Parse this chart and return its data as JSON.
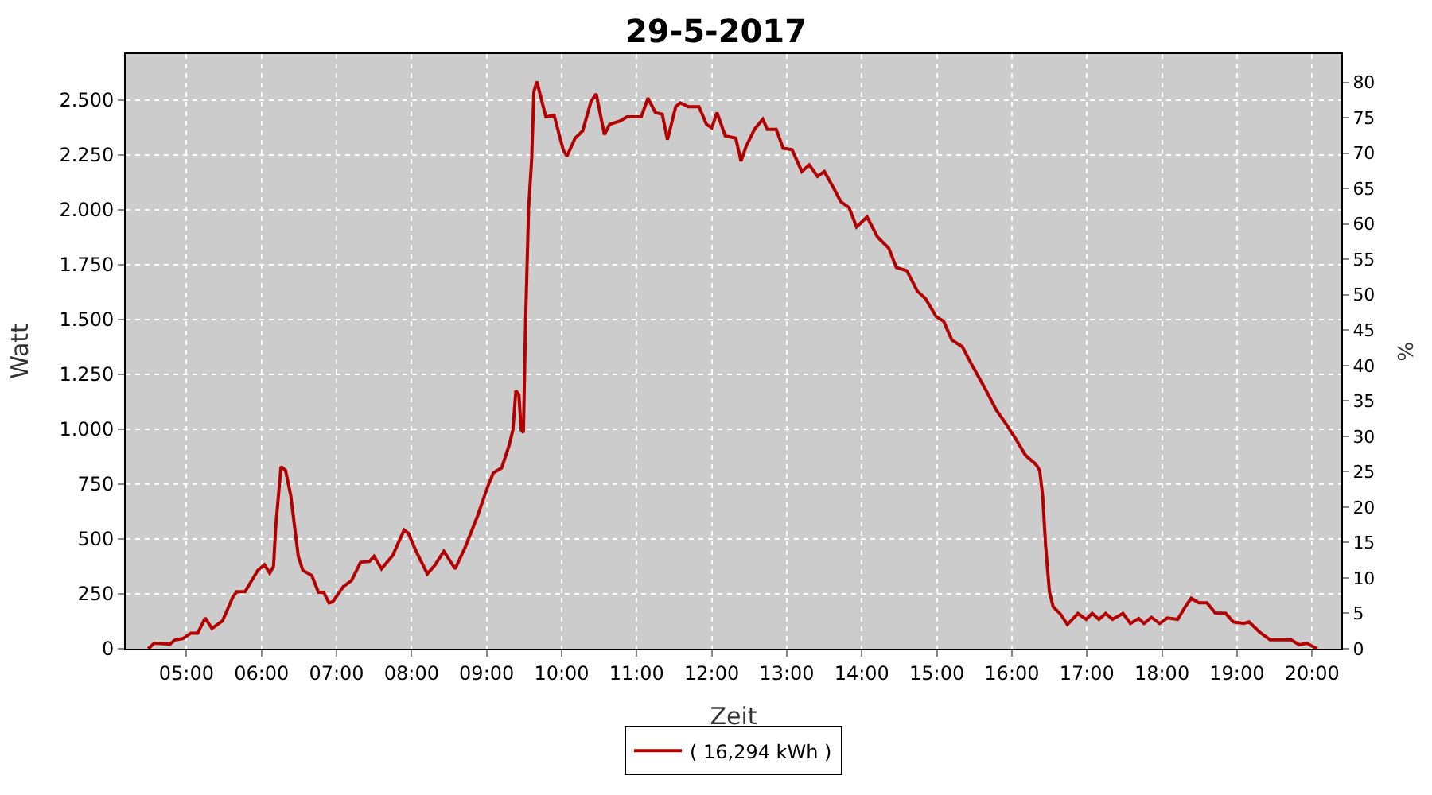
{
  "chart_data": {
    "type": "line",
    "title": "29-5-2017",
    "xlabel": "Zeit",
    "ylabel": "Watt",
    "y2label": "%",
    "x": [
      4.49,
      4.57,
      4.78,
      4.85,
      4.95,
      5.06,
      5.15,
      5.25,
      5.34,
      5.48,
      5.62,
      5.67,
      5.78,
      5.95,
      6.04,
      6.11,
      6.16,
      6.19,
      6.26,
      6.32,
      6.39,
      6.49,
      6.55,
      6.67,
      6.76,
      6.83,
      6.9,
      6.95,
      7.09,
      7.2,
      7.32,
      7.44,
      7.5,
      7.6,
      7.75,
      7.9,
      7.96,
      8.06,
      8.21,
      8.31,
      8.43,
      8.58,
      8.72,
      8.88,
      9.02,
      9.09,
      9.2,
      9.3,
      9.35,
      9.39,
      9.43,
      9.46,
      9.49,
      9.52,
      9.56,
      9.6,
      9.63,
      9.67,
      9.72,
      9.79,
      9.9,
      10.02,
      10.07,
      10.18,
      10.28,
      10.39,
      10.46,
      10.57,
      10.64,
      10.78,
      10.87,
      11.06,
      11.15,
      11.25,
      11.34,
      11.41,
      11.52,
      11.58,
      11.69,
      11.83,
      11.93,
      12.0,
      12.07,
      12.18,
      12.32,
      12.39,
      12.46,
      12.57,
      12.68,
      12.74,
      12.86,
      12.95,
      13.07,
      13.2,
      13.3,
      13.41,
      13.5,
      13.62,
      13.72,
      13.83,
      13.93,
      14.07,
      14.21,
      14.36,
      14.46,
      14.6,
      14.74,
      14.85,
      14.99,
      15.09,
      15.2,
      15.34,
      15.48,
      15.65,
      15.79,
      15.93,
      16.06,
      16.18,
      16.32,
      16.37,
      16.41,
      16.45,
      16.5,
      16.55,
      16.65,
      16.74,
      16.88,
      16.99,
      17.07,
      17.16,
      17.25,
      17.34,
      17.48,
      17.58,
      17.69,
      17.76,
      17.86,
      17.97,
      18.07,
      18.21,
      18.31,
      18.39,
      18.49,
      18.6,
      18.71,
      18.85,
      18.95,
      19.09,
      19.16,
      19.3,
      19.44,
      19.72,
      19.83,
      19.93,
      20.0,
      20.07
    ],
    "series": [
      {
        "name": "( 16,294 kWh )",
        "color": "#b30000",
        "values": [
          0,
          25,
          21,
          41,
          46,
          71,
          71,
          140,
          92,
          127,
          237,
          260,
          260,
          357,
          382,
          345,
          375,
          559,
          829,
          813,
          697,
          421,
          357,
          334,
          256,
          256,
          209,
          214,
          283,
          311,
          394,
          398,
          421,
          364,
          426,
          541,
          525,
          444,
          341,
          380,
          444,
          364,
          467,
          606,
          744,
          801,
          824,
          927,
          997,
          1176,
          1158,
          997,
          985,
          1503,
          2010,
          2228,
          2539,
          2585,
          2516,
          2424,
          2430,
          2274,
          2244,
          2327,
          2360,
          2493,
          2528,
          2343,
          2390,
          2405,
          2424,
          2424,
          2509,
          2443,
          2436,
          2320,
          2470,
          2488,
          2470,
          2470,
          2390,
          2374,
          2443,
          2337,
          2327,
          2222,
          2291,
          2367,
          2413,
          2367,
          2367,
          2281,
          2274,
          2175,
          2205,
          2152,
          2175,
          2102,
          2037,
          2010,
          1922,
          1968,
          1876,
          1825,
          1738,
          1722,
          1630,
          1595,
          1514,
          1492,
          1407,
          1376,
          1285,
          1181,
          1089,
          1020,
          951,
          882,
          840,
          813,
          697,
          467,
          260,
          191,
          157,
          110,
          161,
          134,
          161,
          134,
          161,
          134,
          161,
          115,
          138,
          115,
          143,
          115,
          140,
          134,
          191,
          230,
          209,
          209,
          163,
          161,
          122,
          115,
          122,
          76,
          41,
          41,
          18,
          25,
          12,
          0
        ]
      }
    ],
    "xlim": [
      4.19,
      20.39
    ],
    "xticks": [
      {
        "value": 5,
        "label": "05:00"
      },
      {
        "value": 6,
        "label": "06:00"
      },
      {
        "value": 7,
        "label": "07:00"
      },
      {
        "value": 8,
        "label": "08:00"
      },
      {
        "value": 9,
        "label": "09:00"
      },
      {
        "value": 10,
        "label": "10:00"
      },
      {
        "value": 11,
        "label": "11:00"
      },
      {
        "value": 12,
        "label": "12:00"
      },
      {
        "value": 13,
        "label": "13:00"
      },
      {
        "value": 14,
        "label": "14:00"
      },
      {
        "value": 15,
        "label": "15:00"
      },
      {
        "value": 16,
        "label": "16:00"
      },
      {
        "value": 17,
        "label": "17:00"
      },
      {
        "value": 18,
        "label": "18:00"
      },
      {
        "value": 19,
        "label": "19:00"
      },
      {
        "value": 20,
        "label": "20:00"
      }
    ],
    "ylim": [
      0,
      2710
    ],
    "yticks": [
      0,
      250,
      500,
      750,
      {
        "value": 1000,
        "label": "1.000"
      },
      {
        "value": 1250,
        "label": "1.250"
      },
      {
        "value": 1500,
        "label": "1.500"
      },
      {
        "value": 1750,
        "label": "1.750"
      },
      {
        "value": 2000,
        "label": "2.000"
      },
      {
        "value": 2250,
        "label": "2.250"
      },
      {
        "value": 2500,
        "label": "2.500"
      }
    ],
    "y2lim": [
      0,
      84
    ],
    "y2ticks": [
      0,
      5,
      10,
      15,
      20,
      25,
      30,
      35,
      40,
      45,
      50,
      55,
      60,
      65,
      70,
      75,
      80
    ],
    "grid": true,
    "legend": "bottom",
    "marker": "none",
    "line_style": "solid"
  }
}
